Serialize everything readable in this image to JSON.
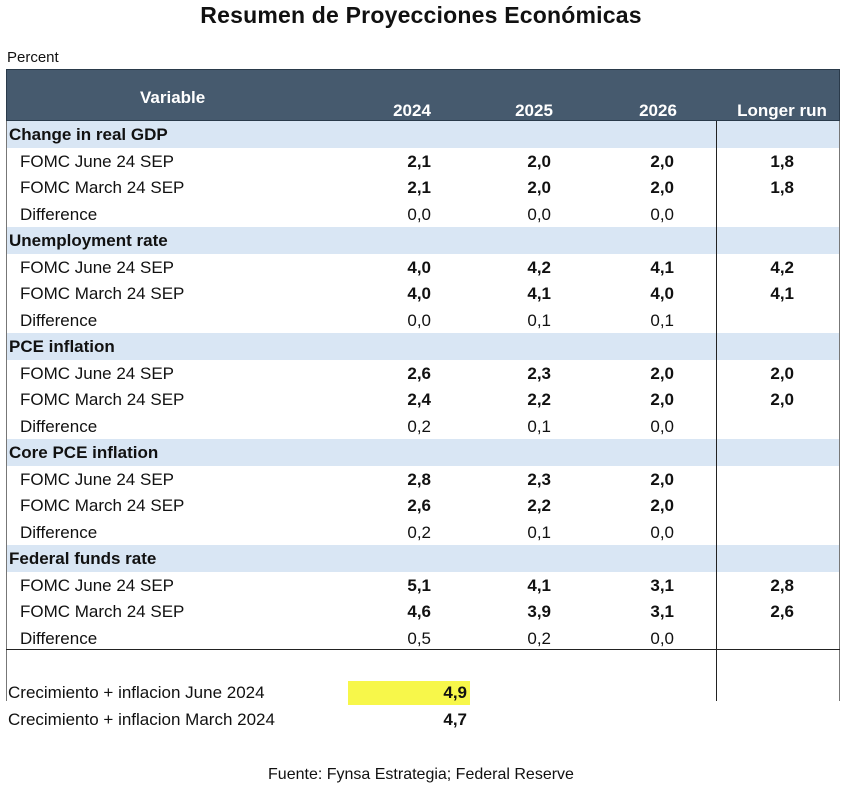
{
  "title": "Resumen de Proyecciones Económicas",
  "unit": "Percent",
  "header": {
    "variable": "Variable",
    "years": [
      "2024",
      "2025",
      "2026"
    ],
    "longer_run": "Longer run"
  },
  "sections": [
    {
      "name": "Change in real GDP",
      "rows": [
        {
          "label": "FOMC June 24 SEP",
          "v2024": "2,1",
          "v2025": "2,0",
          "v2026": "2,0",
          "longer": "1,8"
        },
        {
          "label": "FOMC March 24 SEP",
          "v2024": "2,1",
          "v2025": "2,0",
          "v2026": "2,0",
          "longer": "1,8"
        },
        {
          "label": "Difference",
          "v2024": "0,0",
          "v2025": "0,0",
          "v2026": "0,0",
          "longer": ""
        }
      ]
    },
    {
      "name": "Unemployment rate",
      "rows": [
        {
          "label": "FOMC June 24 SEP",
          "v2024": "4,0",
          "v2025": "4,2",
          "v2026": "4,1",
          "longer": "4,2"
        },
        {
          "label": "FOMC March 24 SEP",
          "v2024": "4,0",
          "v2025": "4,1",
          "v2026": "4,0",
          "longer": "4,1"
        },
        {
          "label": "Difference",
          "v2024": "0,0",
          "v2025": "0,1",
          "v2026": "0,1",
          "longer": ""
        }
      ]
    },
    {
      "name": "PCE inflation",
      "rows": [
        {
          "label": "FOMC June 24 SEP",
          "v2024": "2,6",
          "v2025": "2,3",
          "v2026": "2,0",
          "longer": "2,0"
        },
        {
          "label": "FOMC March 24 SEP",
          "v2024": "2,4",
          "v2025": "2,2",
          "v2026": "2,0",
          "longer": "2,0"
        },
        {
          "label": "Difference",
          "v2024": "0,2",
          "v2025": "0,1",
          "v2026": "0,0",
          "longer": ""
        }
      ]
    },
    {
      "name": "Core PCE inflation",
      "rows": [
        {
          "label": "FOMC June 24 SEP",
          "v2024": "2,8",
          "v2025": "2,3",
          "v2026": "2,0",
          "longer": ""
        },
        {
          "label": "FOMC March 24 SEP",
          "v2024": "2,6",
          "v2025": "2,2",
          "v2026": "2,0",
          "longer": ""
        },
        {
          "label": "Difference",
          "v2024": "0,2",
          "v2025": "0,1",
          "v2026": "0,0",
          "longer": ""
        }
      ]
    },
    {
      "name": "Federal funds rate",
      "rows": [
        {
          "label": "FOMC June 24 SEP",
          "v2024": "5,1",
          "v2025": "4,1",
          "v2026": "3,1",
          "longer": "2,8"
        },
        {
          "label": "FOMC March 24 SEP",
          "v2024": "4,6",
          "v2025": "3,9",
          "v2026": "3,1",
          "longer": "2,6"
        },
        {
          "label": "Difference",
          "v2024": "0,5",
          "v2025": "0,2",
          "v2026": "0,0",
          "longer": ""
        }
      ]
    }
  ],
  "summary": [
    {
      "label": "Crecimiento + inflacion June 2024",
      "value": "4,9",
      "highlight_color": "#f7f74a"
    },
    {
      "label": "Crecimiento + inflacion March 2024",
      "value": "4,7"
    }
  ],
  "source": "Fuente: Fynsa Estrategia; Federal Reserve"
}
